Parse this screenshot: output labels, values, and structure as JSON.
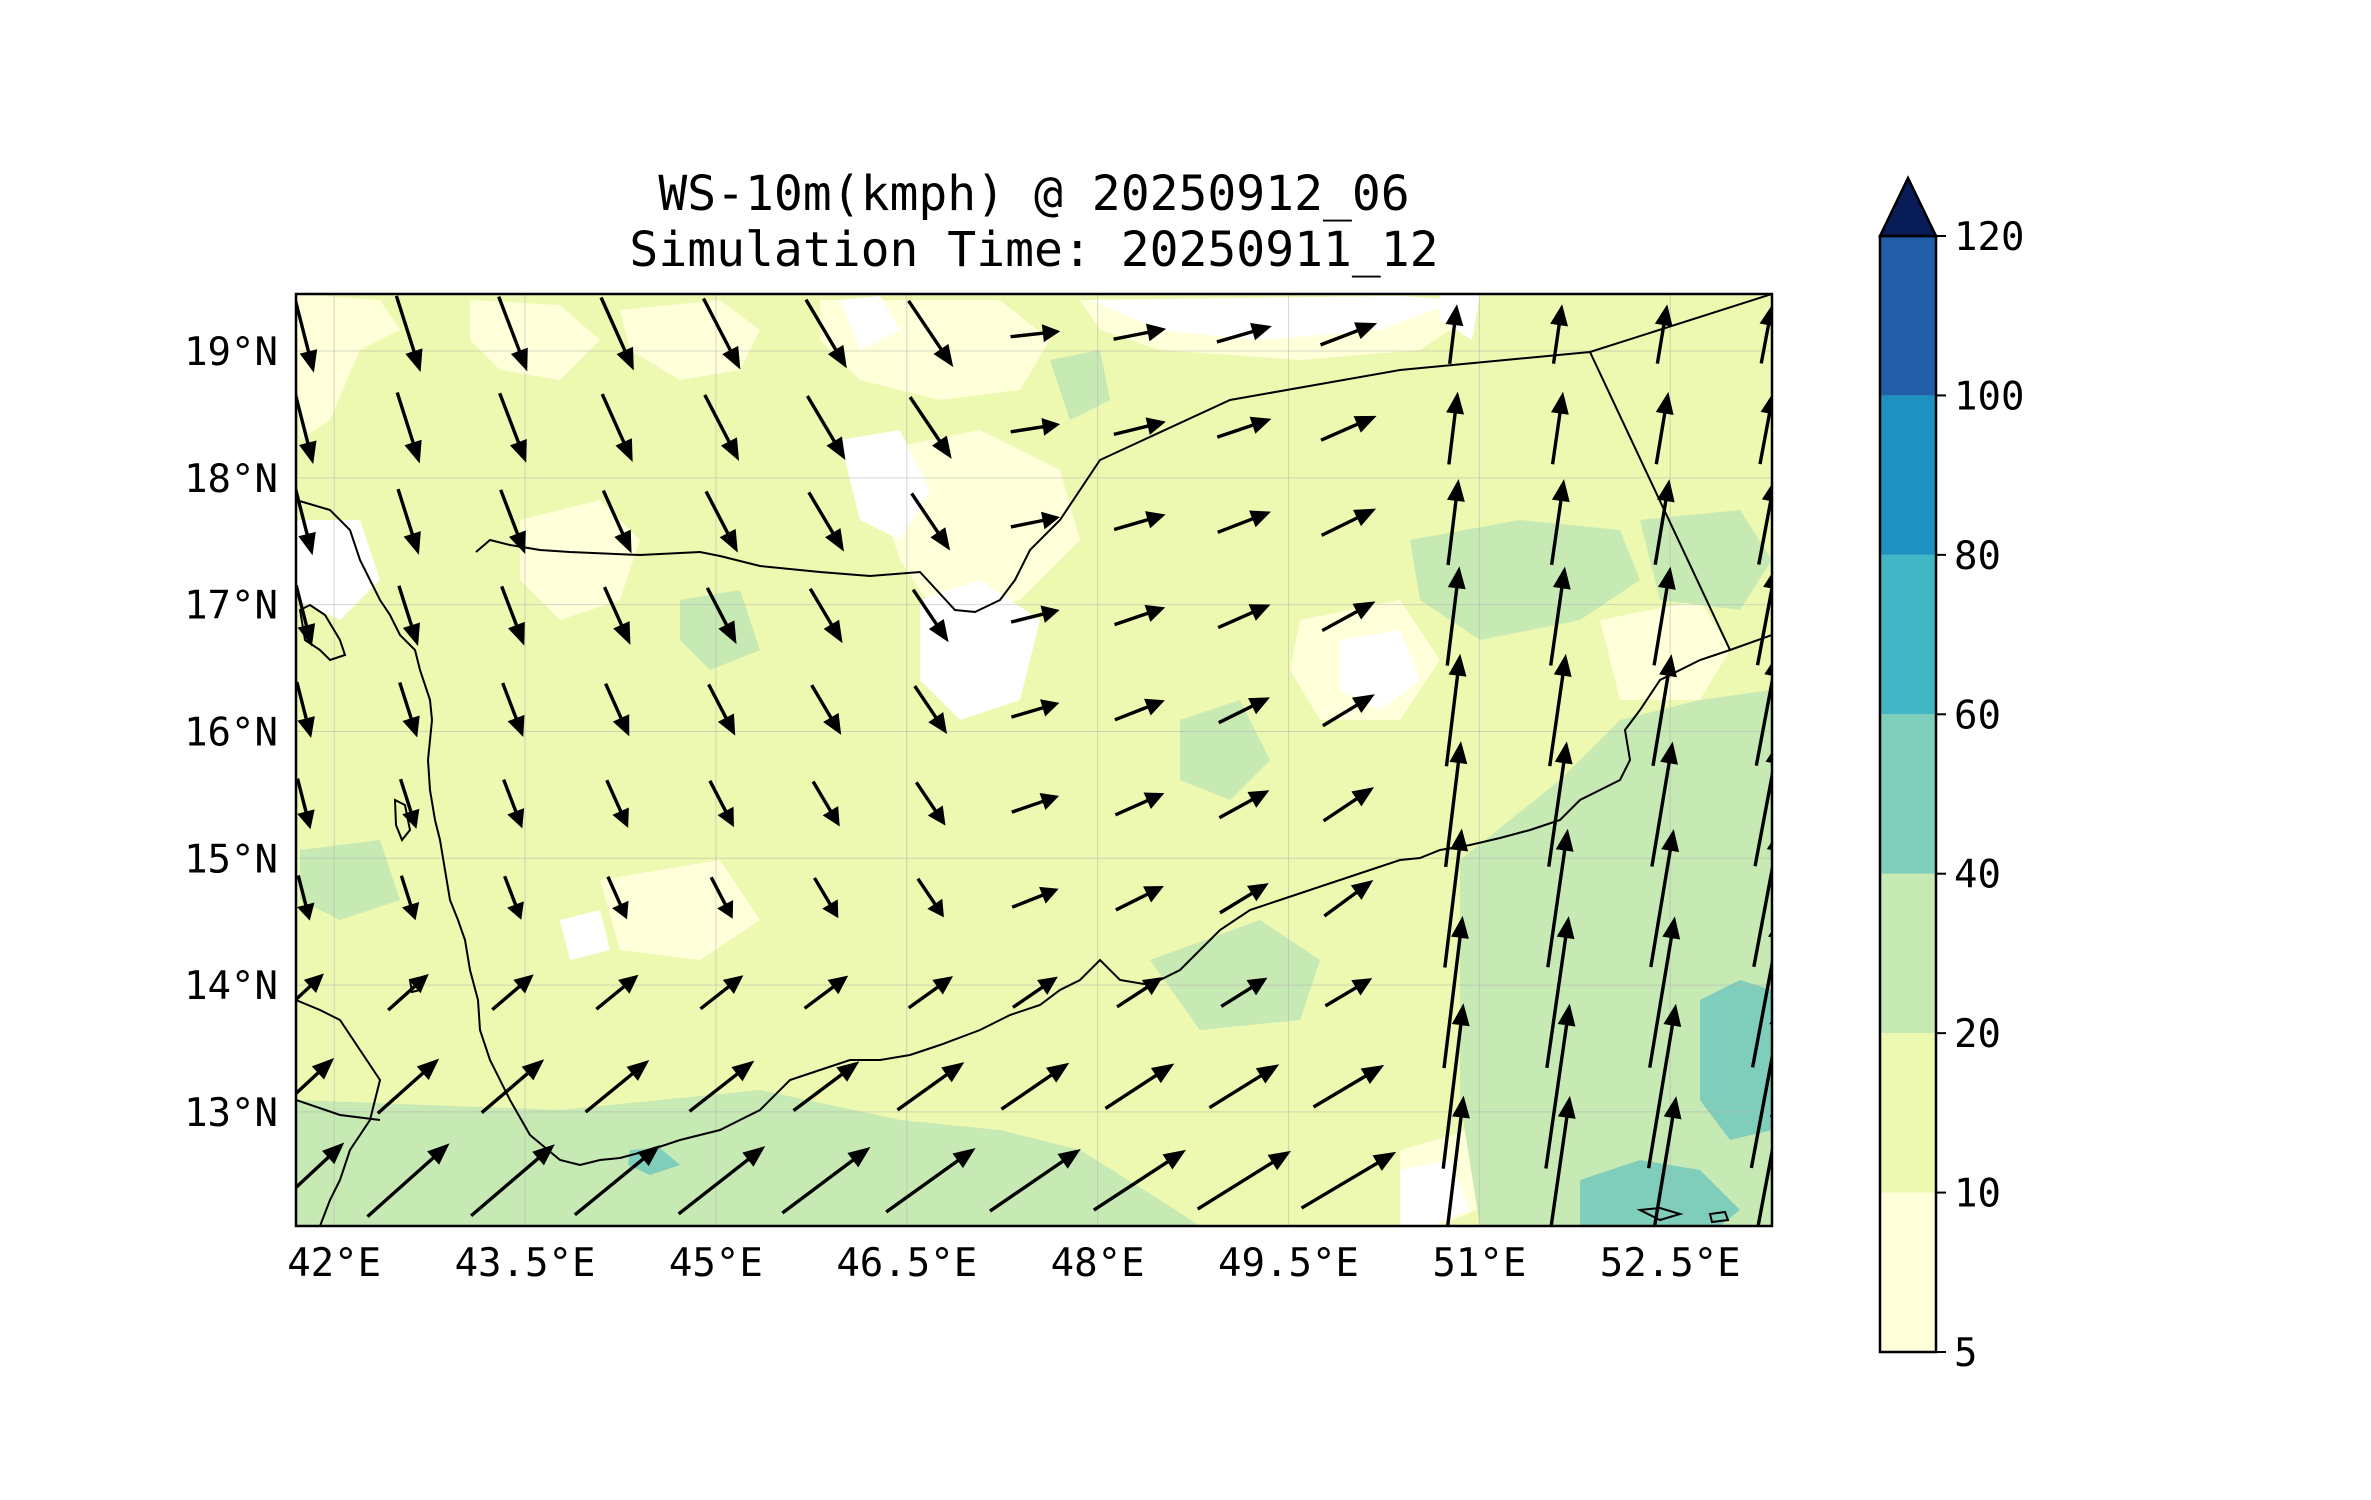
{
  "title": {
    "line1": "WS-10m(kmph) @ 20250912_06",
    "line2": "Simulation Time: 20250911_12"
  },
  "map": {
    "lon_range": [
      41.7,
      53.3
    ],
    "lat_range": [
      12.1,
      19.45
    ],
    "x_ticks": [
      {
        "value": 42.0,
        "label": "42°E"
      },
      {
        "value": 43.5,
        "label": "43.5°E"
      },
      {
        "value": 45.0,
        "label": "45°E"
      },
      {
        "value": 46.5,
        "label": "46.5°E"
      },
      {
        "value": 48.0,
        "label": "48°E"
      },
      {
        "value": 49.5,
        "label": "49.5°E"
      },
      {
        "value": 51.0,
        "label": "51°E"
      },
      {
        "value": 52.5,
        "label": "52.5°E"
      }
    ],
    "y_ticks": [
      {
        "value": 19,
        "label": "19°N"
      },
      {
        "value": 18,
        "label": "18°N"
      },
      {
        "value": 17,
        "label": "17°N"
      },
      {
        "value": 16,
        "label": "16°N"
      },
      {
        "value": 15,
        "label": "15°N"
      },
      {
        "value": 14,
        "label": "14°N"
      },
      {
        "value": 13,
        "label": "13°N"
      }
    ],
    "gridlines": true
  },
  "colorbar": {
    "levels": [
      5,
      10,
      20,
      40,
      60,
      80,
      100,
      120
    ],
    "labels": [
      "5",
      "10",
      "20",
      "40",
      "60",
      "80",
      "100",
      "120"
    ],
    "colors": [
      "#ffffd9",
      "#edf8b1",
      "#c7e9b4",
      "#7fcdbb",
      "#41b6c4",
      "#1d91c0",
      "#225ea8",
      "#0c2c84"
    ],
    "extend_color": "#081d58",
    "extend": "max"
  },
  "fill_colors": {
    "below_5": "#ffffff",
    "band_5_10": "#ffffd9",
    "band_10_20": "#edf8b1",
    "band_20_40": "#c7e9b4",
    "band_40_60": "#7fcdbb"
  }
}
